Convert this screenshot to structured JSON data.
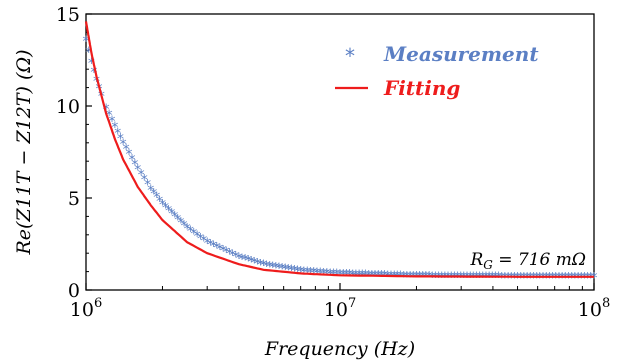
{
  "chart_data": {
    "type": "line",
    "xlabel": "Frequency (Hz)",
    "ylabel": "Re(Z11T − Z12T) (Ω)",
    "xscale": "log",
    "xlim": [
      1000000,
      100000000
    ],
    "ylim": [
      0,
      15
    ],
    "x_ticks": [
      {
        "value": 1000000,
        "base": "10",
        "exp": "6"
      },
      {
        "value": 10000000,
        "base": "10",
        "exp": "7"
      },
      {
        "value": 100000000,
        "base": "10",
        "exp": "8"
      }
    ],
    "y_ticks": [
      0,
      5,
      10,
      15
    ],
    "grid": false,
    "legend_position": "top-right",
    "series": [
      {
        "name": "Measurement",
        "marker": "*",
        "color": "#5b7fc4",
        "x": [
          1000000,
          1050000,
          1100000,
          1150000,
          1200000,
          1300000,
          1400000,
          1600000,
          1800000,
          2000000,
          2500000,
          3000000,
          4000000,
          5000000,
          7000000,
          10000000,
          20000000,
          50000000,
          100000000
        ],
        "y": [
          13.6,
          12.4,
          11.4,
          10.6,
          9.9,
          8.9,
          8.0,
          6.6,
          5.5,
          4.7,
          3.4,
          2.6,
          1.8,
          1.4,
          1.05,
          0.9,
          0.78,
          0.74,
          0.73
        ]
      },
      {
        "name": "Fitting",
        "marker": "line",
        "color": "#ee1c1c",
        "x": [
          1000000,
          1050000,
          1100000,
          1200000,
          1300000,
          1400000,
          1600000,
          1800000,
          2000000,
          2500000,
          3000000,
          4000000,
          5000000,
          7000000,
          10000000,
          20000000,
          50000000,
          100000000
        ],
        "y": [
          14.6,
          12.9,
          11.6,
          9.6,
          8.2,
          7.1,
          5.6,
          4.6,
          3.8,
          2.6,
          2.0,
          1.4,
          1.1,
          0.9,
          0.8,
          0.74,
          0.72,
          0.72
        ]
      }
    ],
    "annotation": {
      "prefix": "R",
      "sub": "G",
      "suffix": " = 716 mΩ"
    }
  }
}
